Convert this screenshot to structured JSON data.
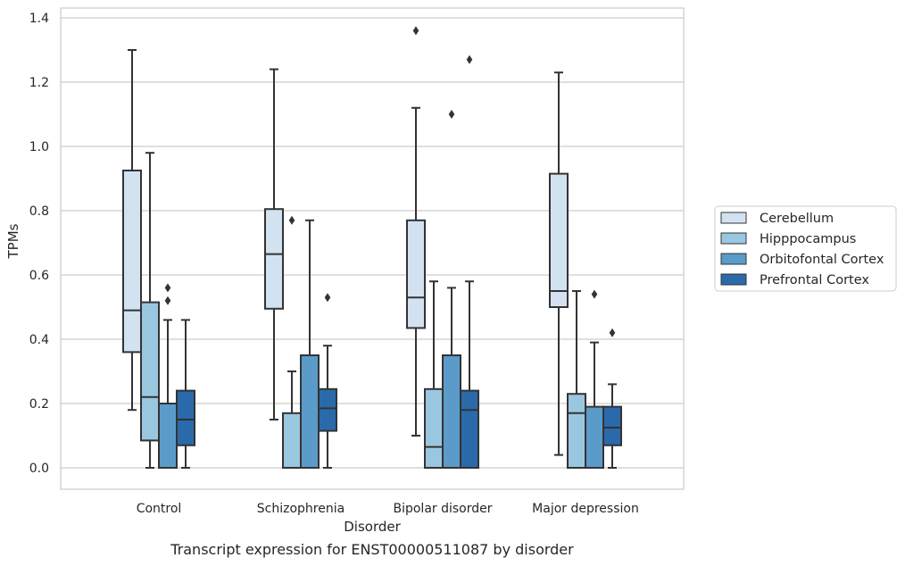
{
  "caption": "Transcript expression for ENST00000511087 by disorder",
  "chart_data": {
    "type": "box",
    "xlabel": "Disorder",
    "ylabel": "TPMs",
    "ylim": [
      -0.065,
      1.43
    ],
    "yticks": [
      "0.0",
      "0.2",
      "0.4",
      "0.6",
      "0.8",
      "1.0",
      "1.2",
      "1.4"
    ],
    "grid": true,
    "legend_position": "right",
    "categories": [
      "Control",
      "Schizophrenia",
      "Bipolar disorder",
      "Major depression"
    ],
    "series": [
      {
        "name": "Cerebellum",
        "color": "#d3e2f1",
        "boxes": [
          {
            "whislo": 0.18,
            "q1": 0.36,
            "med": 0.49,
            "q3": 0.925,
            "whishi": 1.3,
            "fliers": []
          },
          {
            "whislo": 0.15,
            "q1": 0.495,
            "med": 0.665,
            "q3": 0.805,
            "whishi": 1.24,
            "fliers": []
          },
          {
            "whislo": 0.1,
            "q1": 0.435,
            "med": 0.53,
            "q3": 0.77,
            "whishi": 1.12,
            "fliers": [
              1.36
            ]
          },
          {
            "whislo": 0.04,
            "q1": 0.5,
            "med": 0.55,
            "q3": 0.915,
            "whishi": 1.23,
            "fliers": []
          }
        ]
      },
      {
        "name": "Hipppocampus",
        "color": "#9ac7e0",
        "boxes": [
          {
            "whislo": 0.0,
            "q1": 0.085,
            "med": 0.22,
            "q3": 0.515,
            "whishi": 0.98,
            "fliers": []
          },
          {
            "whislo": 0.0,
            "q1": 0.0,
            "med": 0.0,
            "q3": 0.17,
            "whishi": 0.3,
            "fliers": [
              0.77
            ]
          },
          {
            "whislo": 0.0,
            "q1": 0.0,
            "med": 0.065,
            "q3": 0.245,
            "whishi": 0.58,
            "fliers": []
          },
          {
            "whislo": 0.0,
            "q1": 0.0,
            "med": 0.17,
            "q3": 0.23,
            "whishi": 0.55,
            "fliers": []
          }
        ]
      },
      {
        "name": "Orbitofontal Cortex",
        "color": "#5a9bc9",
        "boxes": [
          {
            "whislo": 0.0,
            "q1": 0.0,
            "med": 0.0,
            "q3": 0.2,
            "whishi": 0.46,
            "fliers": [
              0.52,
              0.56
            ]
          },
          {
            "whislo": 0.0,
            "q1": 0.0,
            "med": 0.0,
            "q3": 0.35,
            "whishi": 0.77,
            "fliers": []
          },
          {
            "whislo": 0.0,
            "q1": 0.0,
            "med": 0.0,
            "q3": 0.35,
            "whishi": 0.56,
            "fliers": [
              1.1
            ]
          },
          {
            "whislo": 0.0,
            "q1": 0.0,
            "med": 0.0,
            "q3": 0.19,
            "whishi": 0.39,
            "fliers": [
              0.54
            ]
          }
        ]
      },
      {
        "name": "Prefrontal Cortex",
        "color": "#2a6aab",
        "boxes": [
          {
            "whislo": 0.0,
            "q1": 0.07,
            "med": 0.15,
            "q3": 0.24,
            "whishi": 0.46,
            "fliers": []
          },
          {
            "whislo": 0.0,
            "q1": 0.115,
            "med": 0.185,
            "q3": 0.245,
            "whishi": 0.38,
            "fliers": [
              0.53
            ]
          },
          {
            "whislo": 0.0,
            "q1": 0.0,
            "med": 0.18,
            "q3": 0.24,
            "whishi": 0.58,
            "fliers": [
              1.27
            ]
          },
          {
            "whislo": 0.0,
            "q1": 0.07,
            "med": 0.125,
            "q3": 0.19,
            "whishi": 0.26,
            "fliers": [
              0.42
            ]
          }
        ]
      }
    ]
  }
}
